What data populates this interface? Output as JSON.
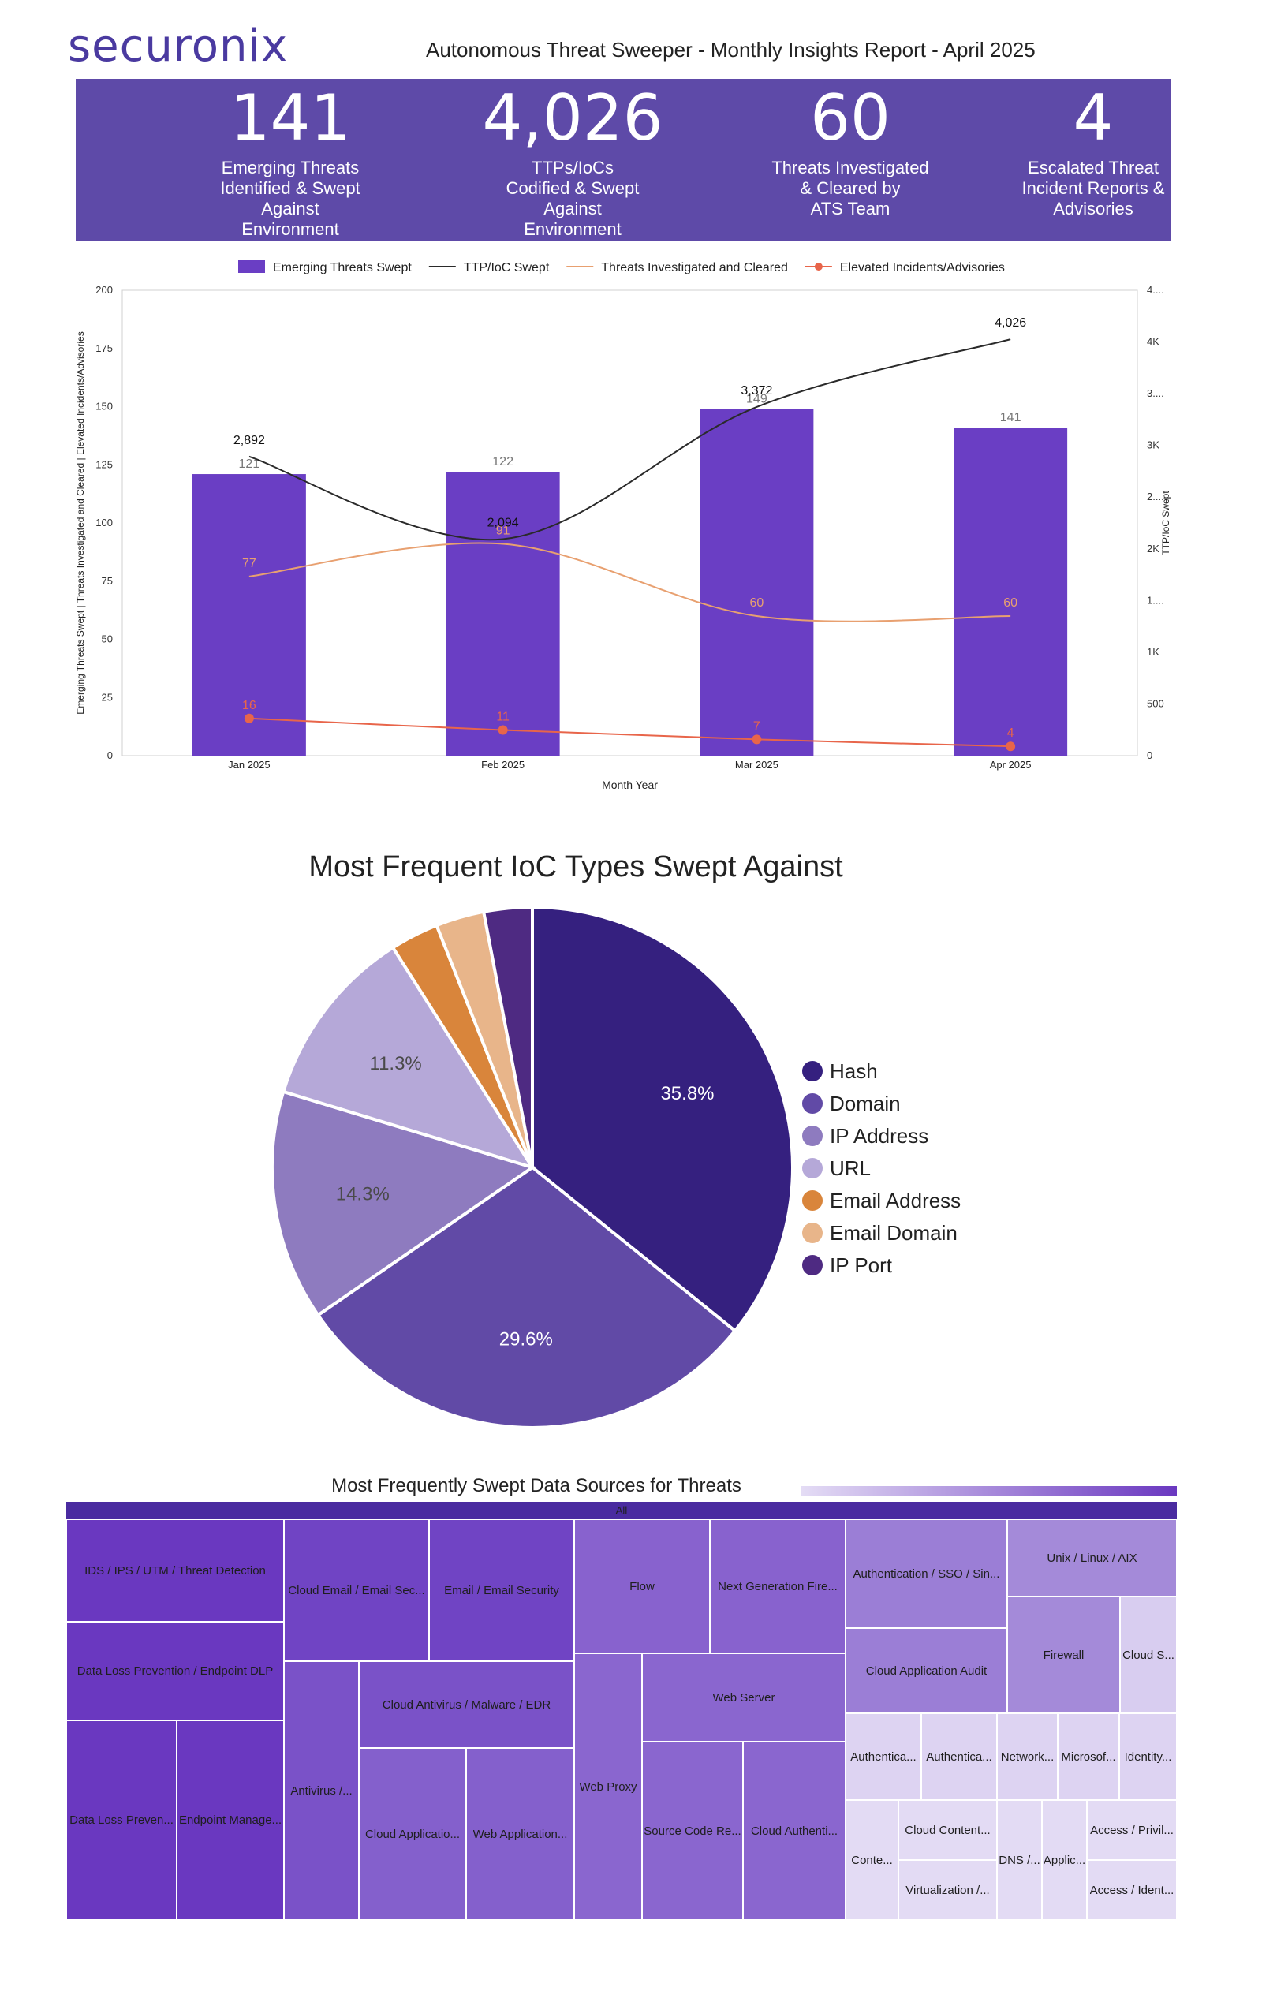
{
  "header": {
    "logo": "securonix",
    "title": "Autonomous Threat Sweeper - Monthly Insights Report - April 2025"
  },
  "kpis": [
    {
      "value": "141",
      "label": "Emerging Threats\nIdentified & Swept\nAgainst\nEnvironment"
    },
    {
      "value": "4,026",
      "label": "TTPs/IoCs\nCodified & Swept\nAgainst\nEnvironment"
    },
    {
      "value": "60",
      "label": "Threats Investigated\n& Cleared by\nATS Team"
    },
    {
      "value": "4",
      "label": "Escalated Threat\nIncident Reports &\nAdvisories"
    }
  ],
  "colors": {
    "brand": "#4a3aa0",
    "kpi_band": "#5e4aa8",
    "bar": "#6a3ec4",
    "ttp_line": "#2a2a2a",
    "investigated_line": "#e8a070",
    "elevated_line": "#e8654a"
  },
  "chart_data": [
    {
      "type": "bar",
      "categories": [
        "Jan 2025",
        "Feb 2025",
        "Mar 2025",
        "Apr 2025"
      ],
      "xlabel": "Month Year",
      "ylabel": "Emerging Threats Swept | Threats Investigated and Cleared | Elevated Incidents/Advisories",
      "y2label": "TTP/IoC Swept",
      "ylim": [
        0,
        200
      ],
      "yticks": [
        0,
        25,
        50,
        75,
        100,
        125,
        150,
        175,
        200
      ],
      "y2lim": [
        0,
        4500
      ],
      "y2ticks": [
        "0",
        "500",
        "1K",
        "1....",
        "2K",
        "2....",
        "3K",
        "3....",
        "4K",
        "4...."
      ],
      "legend_position": "top",
      "series": [
        {
          "name": "Emerging Threats Swept",
          "kind": "bar",
          "axis": "left",
          "values": [
            121,
            122,
            149,
            141
          ],
          "labels": [
            "121",
            "122",
            "149",
            "141"
          ]
        },
        {
          "name": "TTP/IoC Swept",
          "kind": "line",
          "axis": "right",
          "values": [
            2892,
            2094,
            3372,
            4026
          ],
          "labels": [
            "2,892",
            "2,094",
            "3,372",
            "4,026"
          ]
        },
        {
          "name": "Threats Investigated and Cleared",
          "kind": "line",
          "axis": "left",
          "values": [
            77,
            91,
            60,
            60
          ],
          "labels": [
            "77",
            "91",
            "60",
            "60"
          ]
        },
        {
          "name": "Elevated Incidents/Advisories",
          "kind": "line-marker",
          "axis": "left",
          "values": [
            16,
            11,
            7,
            4
          ],
          "labels": [
            "16",
            "11",
            "7",
            "4"
          ]
        }
      ]
    },
    {
      "type": "pie",
      "title": "Most Frequent IoC Types Swept Against",
      "legend_position": "right",
      "slices": [
        {
          "name": "Hash",
          "value": 35.8,
          "label": "35.8%",
          "color": "#35207f"
        },
        {
          "name": "Domain",
          "value": 29.6,
          "label": "29.6%",
          "color": "#614aa6"
        },
        {
          "name": "IP Address",
          "value": 14.3,
          "label": "14.3%",
          "color": "#8e7bbf"
        },
        {
          "name": "URL",
          "value": 11.3,
          "label": "11.3%",
          "color": "#b5a8d8"
        },
        {
          "name": "Email Address",
          "value": 3.0,
          "label": "",
          "color": "#d9853b"
        },
        {
          "name": "Email Domain",
          "value": 3.0,
          "label": "",
          "color": "#e8b58a"
        },
        {
          "name": "IP Port",
          "value": 3.0,
          "label": "",
          "color": "#4e2a82"
        }
      ]
    },
    {
      "type": "heatmap",
      "title": "Most Frequently Swept Data Sources for Threats",
      "root_label": "All",
      "cells": [
        {
          "label": "IDS / IPS / UTM / Threat Detection",
          "color": "#6a38c0"
        },
        {
          "label": "Data Loss Prevention / Endpoint DLP",
          "color": "#6a38c0"
        },
        {
          "label": "Data Loss Preven...",
          "color": "#6a38c0"
        },
        {
          "label": "Endpoint Manage...",
          "color": "#6a38c0"
        },
        {
          "label": "Cloud Email / Email Sec...",
          "color": "#7044c4"
        },
        {
          "label": "Email / Email Security",
          "color": "#7044c4"
        },
        {
          "label": "Cloud Antivirus / Malware / EDR",
          "color": "#7a52c8"
        },
        {
          "label": "Antivirus /...",
          "color": "#7a52c8"
        },
        {
          "label": "Cloud Applicatio...",
          "color": "#8460cc"
        },
        {
          "label": "Web Application...",
          "color": "#8460cc"
        },
        {
          "label": "Flow",
          "color": "#8862ce"
        },
        {
          "label": "Next Generation Fire...",
          "color": "#8862ce"
        },
        {
          "label": "Web Proxy",
          "color": "#8a66cf"
        },
        {
          "label": "Web Server",
          "color": "#8a66cf"
        },
        {
          "label": "Source Code Re...",
          "color": "#8a66cf"
        },
        {
          "label": "Cloud Authenti...",
          "color": "#8a66cf"
        },
        {
          "label": "Authentication / SSO / Sin...",
          "color": "#9b7ed6"
        },
        {
          "label": "Cloud Application Audit",
          "color": "#9b7ed6"
        },
        {
          "label": "Unix / Linux / AIX",
          "color": "#a48ad9"
        },
        {
          "label": "Firewall",
          "color": "#a48ad9"
        },
        {
          "label": "Cloud S...",
          "color": "#d8cdf0"
        },
        {
          "label": "Authentica...",
          "color": "#ddd3f2"
        },
        {
          "label": "Authentica...",
          "color": "#ddd3f2"
        },
        {
          "label": "Network...",
          "color": "#ddd3f2"
        },
        {
          "label": "Microsof...",
          "color": "#ddd3f2"
        },
        {
          "label": "Identity...",
          "color": "#ddd3f2"
        },
        {
          "label": "Conte...",
          "color": "#e3dbf4"
        },
        {
          "label": "Cloud Content...",
          "color": "#e3dbf4"
        },
        {
          "label": "Virtualization /...",
          "color": "#e3dbf4"
        },
        {
          "label": "DNS /...",
          "color": "#e3dbf4"
        },
        {
          "label": "Applic...",
          "color": "#e3dbf4"
        },
        {
          "label": "Access / Privil...",
          "color": "#e3dbf4"
        },
        {
          "label": "Access / Ident...",
          "color": "#e3dbf4"
        }
      ]
    }
  ]
}
